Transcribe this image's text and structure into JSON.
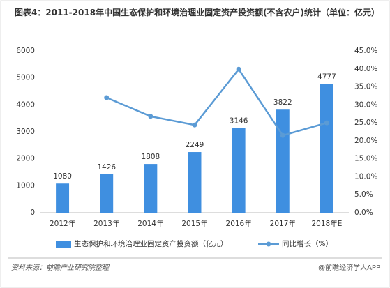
{
  "chart_data": {
    "type": "bar-line",
    "title": "图表4：2011-2018年中国生态保护和环境治理业固定资产投资额(不含农户)统计（单位：亿元）",
    "categories": [
      "2012年",
      "2013年",
      "2014年",
      "2015年",
      "2016年",
      "2017年",
      "2018年E"
    ],
    "series": [
      {
        "name": "生态保护和环境治理业固定资产投资额（亿元）",
        "type": "bar",
        "color": "#3f8fe0",
        "values": [
          1080,
          1426,
          1808,
          2249,
          3146,
          3822,
          4777
        ]
      },
      {
        "name": "同比增长（%）",
        "type": "line",
        "axis": "y2",
        "color": "#5b9bd5",
        "values": [
          null,
          32.0,
          26.8,
          24.4,
          39.9,
          21.5,
          25.0
        ]
      }
    ],
    "ylim": [
      0,
      6000
    ],
    "yticks": [
      0,
      1000,
      2000,
      3000,
      4000,
      5000,
      6000
    ],
    "y2lim": [
      0,
      45
    ],
    "y2ticks": [
      {
        "value": 0,
        "label": "0.0%"
      },
      {
        "value": 5,
        "label": "5.0%"
      },
      {
        "value": 10,
        "label": "10.0%"
      },
      {
        "value": 15,
        "label": "15.0%"
      },
      {
        "value": 20,
        "label": "20.0%"
      },
      {
        "value": 25,
        "label": "25.0%"
      },
      {
        "value": 30,
        "label": "30.0%"
      },
      {
        "value": 35,
        "label": "35.0%"
      },
      {
        "value": 40,
        "label": "40.0%"
      },
      {
        "value": 45,
        "label": "45.0%"
      }
    ],
    "grid": false,
    "legend": "bottom",
    "source": "资料来源：前瞻产业研究院整理",
    "footer": "@前瞻经济学人APP"
  }
}
